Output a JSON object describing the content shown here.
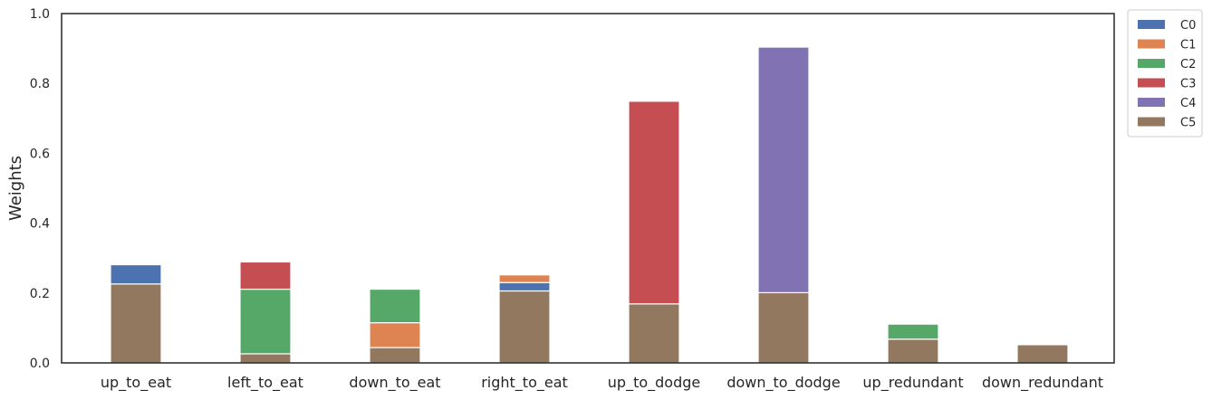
{
  "chart_data": {
    "type": "bar",
    "stacked": true,
    "xlabel": "",
    "ylabel": "Weights",
    "ylim": [
      0,
      1.0
    ],
    "yticks": [
      "0.0",
      "0.2",
      "0.4",
      "0.6",
      "0.8",
      "1.0"
    ],
    "yticks_values": [
      0,
      0.2,
      0.4,
      0.6,
      0.8,
      1.0
    ],
    "categories": [
      "up_to_eat",
      "left_to_eat",
      "down_to_eat",
      "right_to_eat",
      "up_to_dodge",
      "down_to_dodge",
      "up_redundant",
      "down_redundant"
    ],
    "series": [
      {
        "name": "C5",
        "color": "#937860",
        "values": [
          0.226,
          0.026,
          0.044,
          0.206,
          0.169,
          0.201,
          0.068,
          0.052
        ]
      },
      {
        "name": "C0",
        "color": "#4c72b0",
        "values": [
          0.055,
          0,
          0,
          0.024,
          0,
          0,
          0,
          0
        ]
      },
      {
        "name": "C1",
        "color": "#dd8452",
        "values": [
          0,
          0,
          0.071,
          0.022,
          0,
          0,
          0,
          0
        ]
      },
      {
        "name": "C2",
        "color": "#55a868",
        "values": [
          0,
          0.185,
          0.096,
          0,
          0,
          0,
          0.043,
          0
        ]
      },
      {
        "name": "C3",
        "color": "#c44e52",
        "values": [
          0,
          0.078,
          0,
          0,
          0.58,
          0,
          0,
          0
        ]
      },
      {
        "name": "C4",
        "color": "#8172b3",
        "values": [
          0,
          0,
          0,
          0,
          0,
          0.703,
          0,
          0
        ]
      }
    ],
    "legend": {
      "position": "upper-right-outside",
      "entries": [
        {
          "name": "C0",
          "color": "#4c72b0"
        },
        {
          "name": "C1",
          "color": "#dd8452"
        },
        {
          "name": "C2",
          "color": "#55a868"
        },
        {
          "name": "C3",
          "color": "#c44e52"
        },
        {
          "name": "C4",
          "color": "#8172b3"
        },
        {
          "name": "C5",
          "color": "#937860"
        }
      ]
    },
    "grid": false
  }
}
